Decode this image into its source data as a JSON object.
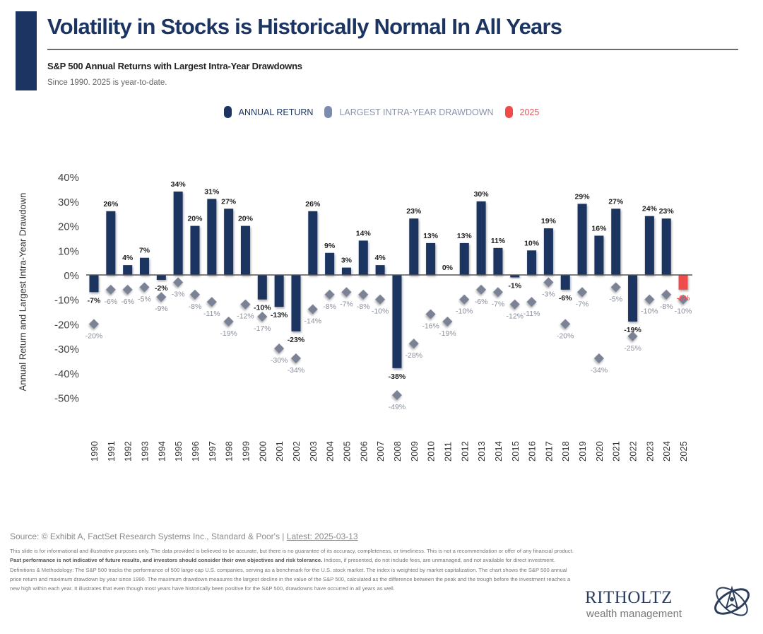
{
  "header": {
    "title": "Volatility in Stocks is Historically Normal In All Years",
    "subtitle": "S&P 500 Annual Returns with Largest Intra-Year Drawdowns",
    "note": "Since 1990. 2025 is year-to-date."
  },
  "legend": [
    {
      "label": "ANNUAL RETURN",
      "color": "#1b3461"
    },
    {
      "label": "LARGEST INTRA-YEAR DRAWDOWN",
      "color": "#7b8cb0"
    },
    {
      "label": "2025",
      "color": "#ef4b4b"
    }
  ],
  "colors": {
    "annual_return": "#1b3461",
    "drawdown": "#7b8296",
    "ytd": "#ef4b4b",
    "axis_text": "#444444"
  },
  "chart_data": {
    "type": "bar",
    "title": "S&P 500 Annual Returns with Largest Intra-Year Drawdowns",
    "xlabel": "",
    "ylabel": "Annual Return and Largest Intra-Year Drawdown",
    "ylim": [
      -50,
      40
    ],
    "yticks": [
      "40%",
      "30%",
      "20%",
      "10%",
      "0%",
      "-10%",
      "-20%",
      "-30%",
      "-40%",
      "-50%"
    ],
    "ytick_values": [
      40,
      30,
      20,
      10,
      0,
      -10,
      -20,
      -30,
      -40,
      -50
    ],
    "grid": false,
    "legend_position": "top-center",
    "categories": [
      "1990",
      "1991",
      "1992",
      "1993",
      "1994",
      "1995",
      "1996",
      "1997",
      "1998",
      "1999",
      "2000",
      "2001",
      "2002",
      "2003",
      "2004",
      "2005",
      "2006",
      "2007",
      "2008",
      "2009",
      "2010",
      "2011",
      "2012",
      "2013",
      "2014",
      "2015",
      "2016",
      "2017",
      "2018",
      "2019",
      "2020",
      "2021",
      "2022",
      "2023",
      "2024",
      "2025"
    ],
    "series": [
      {
        "name": "Annual Return",
        "type": "bar",
        "values": [
          -7,
          26,
          4,
          7,
          -2,
          34,
          20,
          31,
          27,
          20,
          -10,
          -13,
          -23,
          26,
          9,
          3,
          14,
          4,
          -38,
          23,
          13,
          0,
          13,
          30,
          11,
          -1,
          10,
          19,
          -6,
          29,
          16,
          27,
          -19,
          24,
          23,
          -6
        ],
        "labels": [
          "-7%",
          "26%",
          "4%",
          "7%",
          "-2%",
          "34%",
          "20%",
          "31%",
          "27%",
          "20%",
          "-10%",
          "-13%",
          "-23%",
          "26%",
          "9%",
          "3%",
          "14%",
          "4%",
          "-38%",
          "23%",
          "13%",
          "0%",
          "13%",
          "30%",
          "11%",
          "-1%",
          "10%",
          "19%",
          "-6%",
          "29%",
          "16%",
          "27%",
          "-19%",
          "24%",
          "23%",
          "-6%"
        ]
      },
      {
        "name": "Largest Intra-Year Drawdown",
        "type": "scatter",
        "marker": "diamond",
        "values": [
          -20,
          -6,
          -6,
          -5,
          -9,
          -3,
          -8,
          -11,
          -19,
          -12,
          -17,
          -30,
          -34,
          -14,
          -8,
          -7,
          -8,
          -10,
          -49,
          -28,
          -16,
          -19,
          -10,
          -6,
          -7,
          -12,
          -11,
          -3,
          -20,
          -7,
          -34,
          -5,
          -25,
          -10,
          -8,
          -10
        ],
        "labels": [
          "-20%",
          "-6%",
          "-6%",
          "-5%",
          "-9%",
          "-3%",
          "-8%",
          "-11%",
          "-19%",
          "-12%",
          "-17%",
          "-30%",
          "-34%",
          "-14%",
          "-8%",
          "-7%",
          "-8%",
          "-10%",
          "-49%",
          "-28%",
          "-16%",
          "-19%",
          "-10%",
          "-6%",
          "-7%",
          "-12%",
          "-11%",
          "-3%",
          "-20%",
          "-7%",
          "-34%",
          "-5%",
          "-25%",
          "-10%",
          "-8%",
          "-10%"
        ]
      }
    ],
    "highlight_category": "2025"
  },
  "footer": {
    "source": "Source: © Exhibit A, FactSet Research Systems Inc., Standard & Poor's | ",
    "latest": "Latest: 2025-03-13",
    "disclaimer_1": "This slide is for informational and illustrative purposes only. The data provided is believed to be accurate, but there is no guarantee of its accuracy, completeness, or timeliness. This is not a recommendation or offer of any financial product. ",
    "disclaimer_bold": "Past performance is not indicative of future results, and investors should consider their own objectives and risk tolerance.",
    "disclaimer_2": " Indices, if presented, do not include fees, are unmanaged, and not available for direct investment. Definitions & Methodology: The S&P 500 tracks the performance of 500 large-cap U.S. companies, serving as a benchmark for the U.S. stock market. The index is weighted by market capitalization. The chart shows the S&P 500 annual price return and maximum drawdown by year since 1990. The maximum drawdown measures the largest decline in the value of the S&P 500, calculated as the difference between the peak and the trough before the investment reaches a new high within each year. It illustrates that even though most years have historically been positive for the S&P 500, drawdowns have occurred in all years as well."
  },
  "logo": {
    "name": "RITHOLTZ",
    "sub": "wealth management"
  }
}
